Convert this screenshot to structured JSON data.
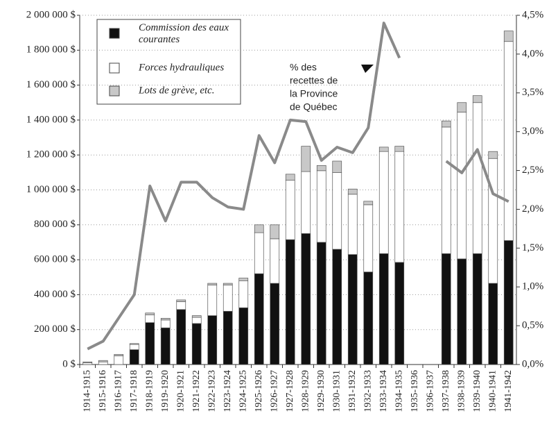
{
  "chart_data": {
    "type": "bar",
    "categories": [
      "1914-1915",
      "1915-1916",
      "1916-1917",
      "1917-1918",
      "1918-1919",
      "1919-1920",
      "1920-1921",
      "1921-1922",
      "1922-1923",
      "1923-1924",
      "1924-1925",
      "1925-1926",
      "1926-1927",
      "1927-1928",
      "1928-1929",
      "1929-1930",
      "1930-1931",
      "1931-1932",
      "1932-1933",
      "1933-1934",
      "1934-1935",
      "1935-1936",
      "1936-1937",
      "1937-1938",
      "1938-1939",
      "1939-1940",
      "1940-1941",
      "1941-1942"
    ],
    "series": [
      {
        "name": "Commission des eaux courantes",
        "color": "#111111",
        "values": [
          0,
          0,
          0,
          85000,
          240000,
          210000,
          315000,
          235000,
          280000,
          305000,
          325000,
          520000,
          465000,
          715000,
          750000,
          700000,
          660000,
          630000,
          530000,
          635000,
          585000,
          null,
          null,
          635000,
          605000,
          635000,
          465000,
          710000
        ]
      },
      {
        "name": "Forces hydrauliques",
        "color": "#ffffff",
        "values": [
          10000,
          15000,
          50000,
          30000,
          45000,
          45000,
          45000,
          35000,
          175000,
          150000,
          155000,
          235000,
          255000,
          340000,
          355000,
          410000,
          440000,
          345000,
          385000,
          585000,
          635000,
          null,
          null,
          725000,
          840000,
          865000,
          715000,
          1140000
        ]
      },
      {
        "name": "Lots de grève, etc.",
        "color": "#c8c8c8",
        "values": [
          5000,
          8000,
          8000,
          5000,
          10000,
          10000,
          10000,
          10000,
          10000,
          10000,
          15000,
          45000,
          80000,
          35000,
          145000,
          30000,
          65000,
          30000,
          20000,
          25000,
          30000,
          null,
          null,
          35000,
          55000,
          40000,
          40000,
          60000
        ]
      },
      {
        "type": "line",
        "axis": "y2",
        "color": "#8a8a8a",
        "values": [
          0.2,
          0.3,
          0.6,
          0.9,
          2.3,
          1.85,
          2.35,
          2.35,
          2.15,
          2.03,
          2.0,
          2.95,
          2.6,
          3.15,
          3.13,
          2.63,
          2.8,
          2.73,
          3.05,
          4.4,
          3.95,
          null,
          null,
          2.62,
          2.47,
          2.77,
          2.2,
          2.1
        ]
      }
    ],
    "annotation": [
      "% des",
      "recettes de",
      "la Province",
      "de Québec"
    ],
    "ylim": [
      0,
      2000000
    ],
    "yticks": [
      {
        "value": 0,
        "label": "0 $"
      },
      {
        "value": 200000,
        "label": "200 000 $"
      },
      {
        "value": 400000,
        "label": "400 000 $"
      },
      {
        "value": 600000,
        "label": "600 000 $"
      },
      {
        "value": 800000,
        "label": "800 000 $"
      },
      {
        "value": 1000000,
        "label": "1 000 000 $"
      },
      {
        "value": 1200000,
        "label": "1 200 000 $"
      },
      {
        "value": 1400000,
        "label": "1 400 000 $"
      },
      {
        "value": 1600000,
        "label": "1 600 000 $"
      },
      {
        "value": 1800000,
        "label": "1 800 000 $"
      },
      {
        "value": 2000000,
        "label": "2 000 000 $"
      }
    ],
    "y2lim": [
      0,
      4.5
    ],
    "y2ticks": [
      {
        "value": 0,
        "label": "0,0%"
      },
      {
        "value": 0.5,
        "label": "0,5%"
      },
      {
        "value": 1,
        "label": "1,0%"
      },
      {
        "value": 1.5,
        "label": "1,5%"
      },
      {
        "value": 2,
        "label": "2,0%"
      },
      {
        "value": 2.5,
        "label": "2,5%"
      },
      {
        "value": 3,
        "label": "3,0%"
      },
      {
        "value": 3.5,
        "label": "3,5%"
      },
      {
        "value": 4,
        "label": "4,0%"
      },
      {
        "value": 4.5,
        "label": "4,5%"
      }
    ],
    "grid": true
  }
}
